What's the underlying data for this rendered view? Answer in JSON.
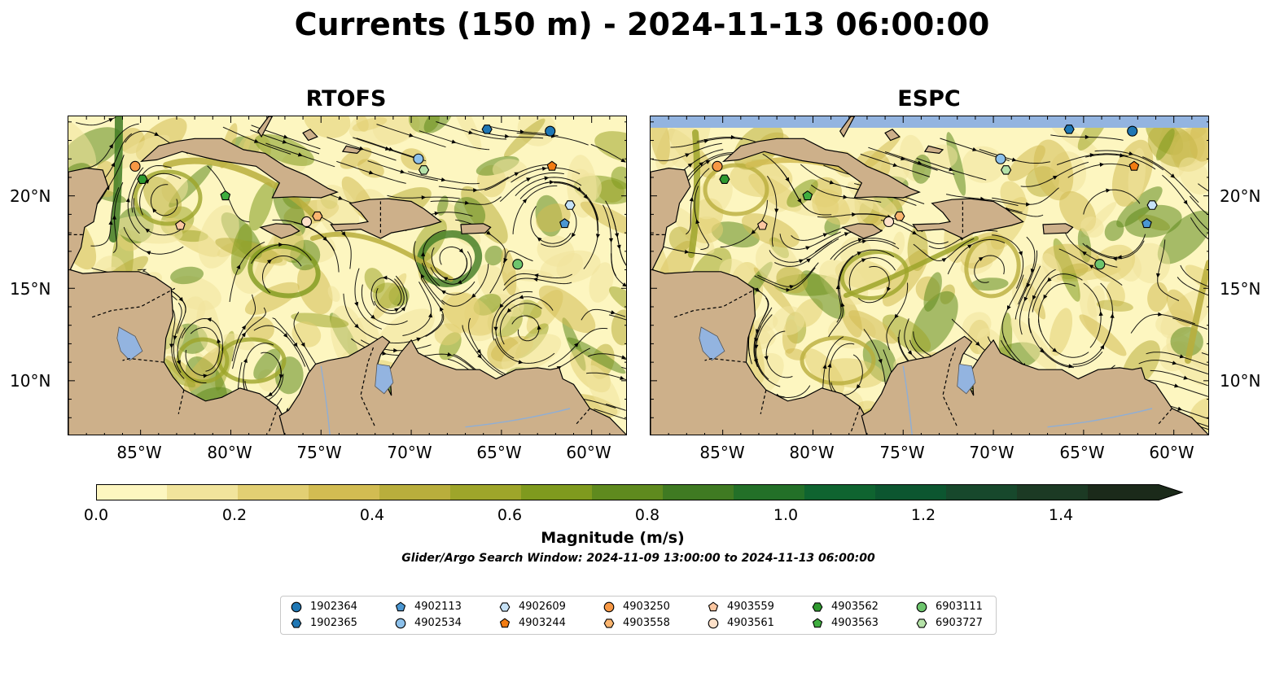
{
  "title": "Currents (150 m) - 2024-11-13 06:00:00",
  "panels": [
    {
      "title": "RTOFS"
    },
    {
      "title": "ESPC"
    }
  ],
  "x_tick_labels": [
    "85°W",
    "80°W",
    "75°W",
    "70°W",
    "65°W",
    "60°W"
  ],
  "y_tick_labels": [
    "20°N",
    "15°N",
    "10°N"
  ],
  "colorbar": {
    "label": "Magnitude (m/s)",
    "tick_labels": [
      "0.0",
      "0.2",
      "0.4",
      "0.6",
      "0.8",
      "1.0",
      "1.2",
      "1.4"
    ],
    "range": [
      0,
      1.5
    ],
    "colors": [
      "#fdf6c0",
      "#f1e49c",
      "#e2cf73",
      "#d2bc52",
      "#b9ae3c",
      "#9ea52a",
      "#7f9a1e",
      "#5f8a1e",
      "#3f7a22",
      "#237028",
      "#0f6430",
      "#0c5630",
      "#17482c",
      "#1c3a24",
      "#1b2a1a"
    ]
  },
  "search_window": "Glider/Argo Search Window: 2024-11-09 13:00:00 to 2024-11-13 06:00:00",
  "colors": {
    "ocean": "#93b4e0",
    "land": "#cdb08a",
    "lake": "#93b4e0"
  },
  "legend": [
    {
      "id": "1902364",
      "marker": "circle",
      "color": "#1f77b4"
    },
    {
      "id": "1902365",
      "marker": "hexagon",
      "color": "#1f77b4"
    },
    {
      "id": "4902113",
      "marker": "pentagon",
      "color": "#4b97d2"
    },
    {
      "id": "4902534",
      "marker": "circle",
      "color": "#8cc0ea"
    },
    {
      "id": "4902609",
      "marker": "hexagon",
      "color": "#c6e2f7"
    },
    {
      "id": "4903244",
      "marker": "pentagon",
      "color": "#f27c12"
    },
    {
      "id": "4903250",
      "marker": "circle",
      "color": "#f79845"
    },
    {
      "id": "4903558",
      "marker": "hexagon",
      "color": "#fbb56f"
    },
    {
      "id": "4903559",
      "marker": "pentagon",
      "color": "#fcc6a0"
    },
    {
      "id": "4903561",
      "marker": "circle",
      "color": "#fde0c8"
    },
    {
      "id": "4903562",
      "marker": "hexagon",
      "color": "#2f9a2f"
    },
    {
      "id": "4903563",
      "marker": "pentagon",
      "color": "#3fae3f"
    },
    {
      "id": "6903111",
      "marker": "circle",
      "color": "#6dc56d"
    },
    {
      "id": "6903727",
      "marker": "hexagon",
      "color": "#b5e2a8"
    }
  ],
  "floats": [
    {
      "id": "1902364",
      "lon": -62.3,
      "lat": 23.5
    },
    {
      "id": "1902365",
      "lon": -65.8,
      "lat": 23.6
    },
    {
      "id": "4902113",
      "lon": -61.5,
      "lat": 18.5
    },
    {
      "id": "4902534",
      "lon": -69.6,
      "lat": 22.0
    },
    {
      "id": "4902609",
      "lon": -61.2,
      "lat": 19.5
    },
    {
      "id": "4903244",
      "lon": -62.2,
      "lat": 21.6
    },
    {
      "id": "4903250",
      "lon": -85.3,
      "lat": 21.6
    },
    {
      "id": "4903558",
      "lon": -75.2,
      "lat": 18.9
    },
    {
      "id": "4903559",
      "lon": -82.8,
      "lat": 18.4
    },
    {
      "id": "4903561",
      "lon": -75.8,
      "lat": 18.6
    },
    {
      "id": "4903562",
      "lon": -84.9,
      "lat": 20.9
    },
    {
      "id": "4903563",
      "lon": -80.3,
      "lat": 20.0
    },
    {
      "id": "6903111",
      "lon": -64.1,
      "lat": 16.3
    },
    {
      "id": "6903727",
      "lon": -69.3,
      "lat": 21.4
    }
  ]
}
